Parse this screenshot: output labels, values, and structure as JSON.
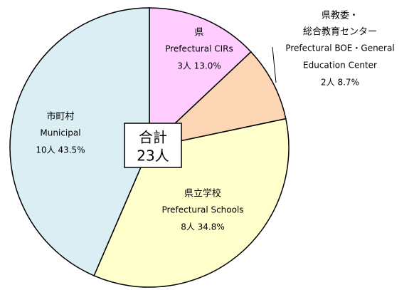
{
  "chart_data": {
    "type": "pie",
    "categories": [
      [
        "県"
      ],
      [
        "県教委・",
        "総合教育センター"
      ],
      [
        "県立学校"
      ],
      [
        "市町村"
      ]
    ],
    "categories_en": [
      [
        "Prefectural CIRs"
      ],
      [
        "Prefectural BOE・General",
        "Education Center"
      ],
      [
        "Prefectural Schools"
      ],
      [
        "Municipal"
      ]
    ],
    "values": [
      13.0,
      8.7,
      34.8,
      43.5
    ],
    "value_labels": [
      "3人 13.0%",
      "2人 8.7%",
      "8人 34.8%",
      "10人 43.5%"
    ],
    "colors": [
      "#ffccff",
      "#fcd5b4",
      "#ffffcc",
      "#daeef3"
    ],
    "center_text": [
      "合計",
      "23人"
    ]
  }
}
